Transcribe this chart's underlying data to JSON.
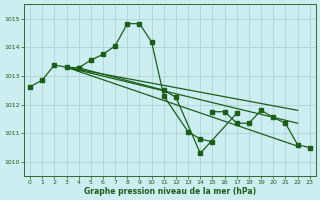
{
  "title": "Graphe pression niveau de la mer (hPa)",
  "bg_color": "#cdeef0",
  "grid_color": "#aacfcf",
  "line_color": "#1a5e1a",
  "marker_color": "#1a5e1a",
  "xlim": [
    -0.5,
    23.5
  ],
  "ylim": [
    1009.5,
    1015.5
  ],
  "yticks": [
    1010,
    1011,
    1012,
    1013,
    1014,
    1015
  ],
  "xticks": [
    0,
    1,
    2,
    3,
    4,
    5,
    6,
    7,
    8,
    9,
    10,
    11,
    12,
    13,
    14,
    15,
    16,
    17,
    18,
    19,
    20,
    21,
    22,
    23
  ],
  "curve1_x": [
    0,
    1,
    2,
    3,
    4,
    11,
    12,
    14,
    17
  ],
  "curve1_y": [
    1012.62,
    1012.85,
    1013.38,
    1013.3,
    1013.28,
    1012.5,
    1012.25,
    1010.3,
    1011.7
  ],
  "curve2_x": [
    4,
    5,
    6,
    7,
    8,
    9,
    10,
    11,
    13,
    14,
    15
  ],
  "curve2_y": [
    1013.28,
    1013.55,
    1013.75,
    1014.05,
    1014.82,
    1014.82,
    1014.18,
    1012.3,
    1011.05,
    1010.8,
    1010.7
  ],
  "straight_lines": [
    {
      "x": [
        3,
        22
      ],
      "y": [
        1013.3,
        1010.55
      ]
    },
    {
      "x": [
        3,
        22
      ],
      "y": [
        1013.3,
        1011.35
      ]
    },
    {
      "x": [
        3,
        22
      ],
      "y": [
        1013.3,
        1011.8
      ]
    }
  ],
  "right_pts_x": [
    15,
    16,
    17,
    18,
    19,
    20,
    21,
    22,
    23
  ],
  "right_pts_y": [
    1011.75,
    1011.75,
    1011.35,
    1011.35,
    1011.8,
    1011.55,
    1011.35,
    1010.6,
    1010.5
  ]
}
